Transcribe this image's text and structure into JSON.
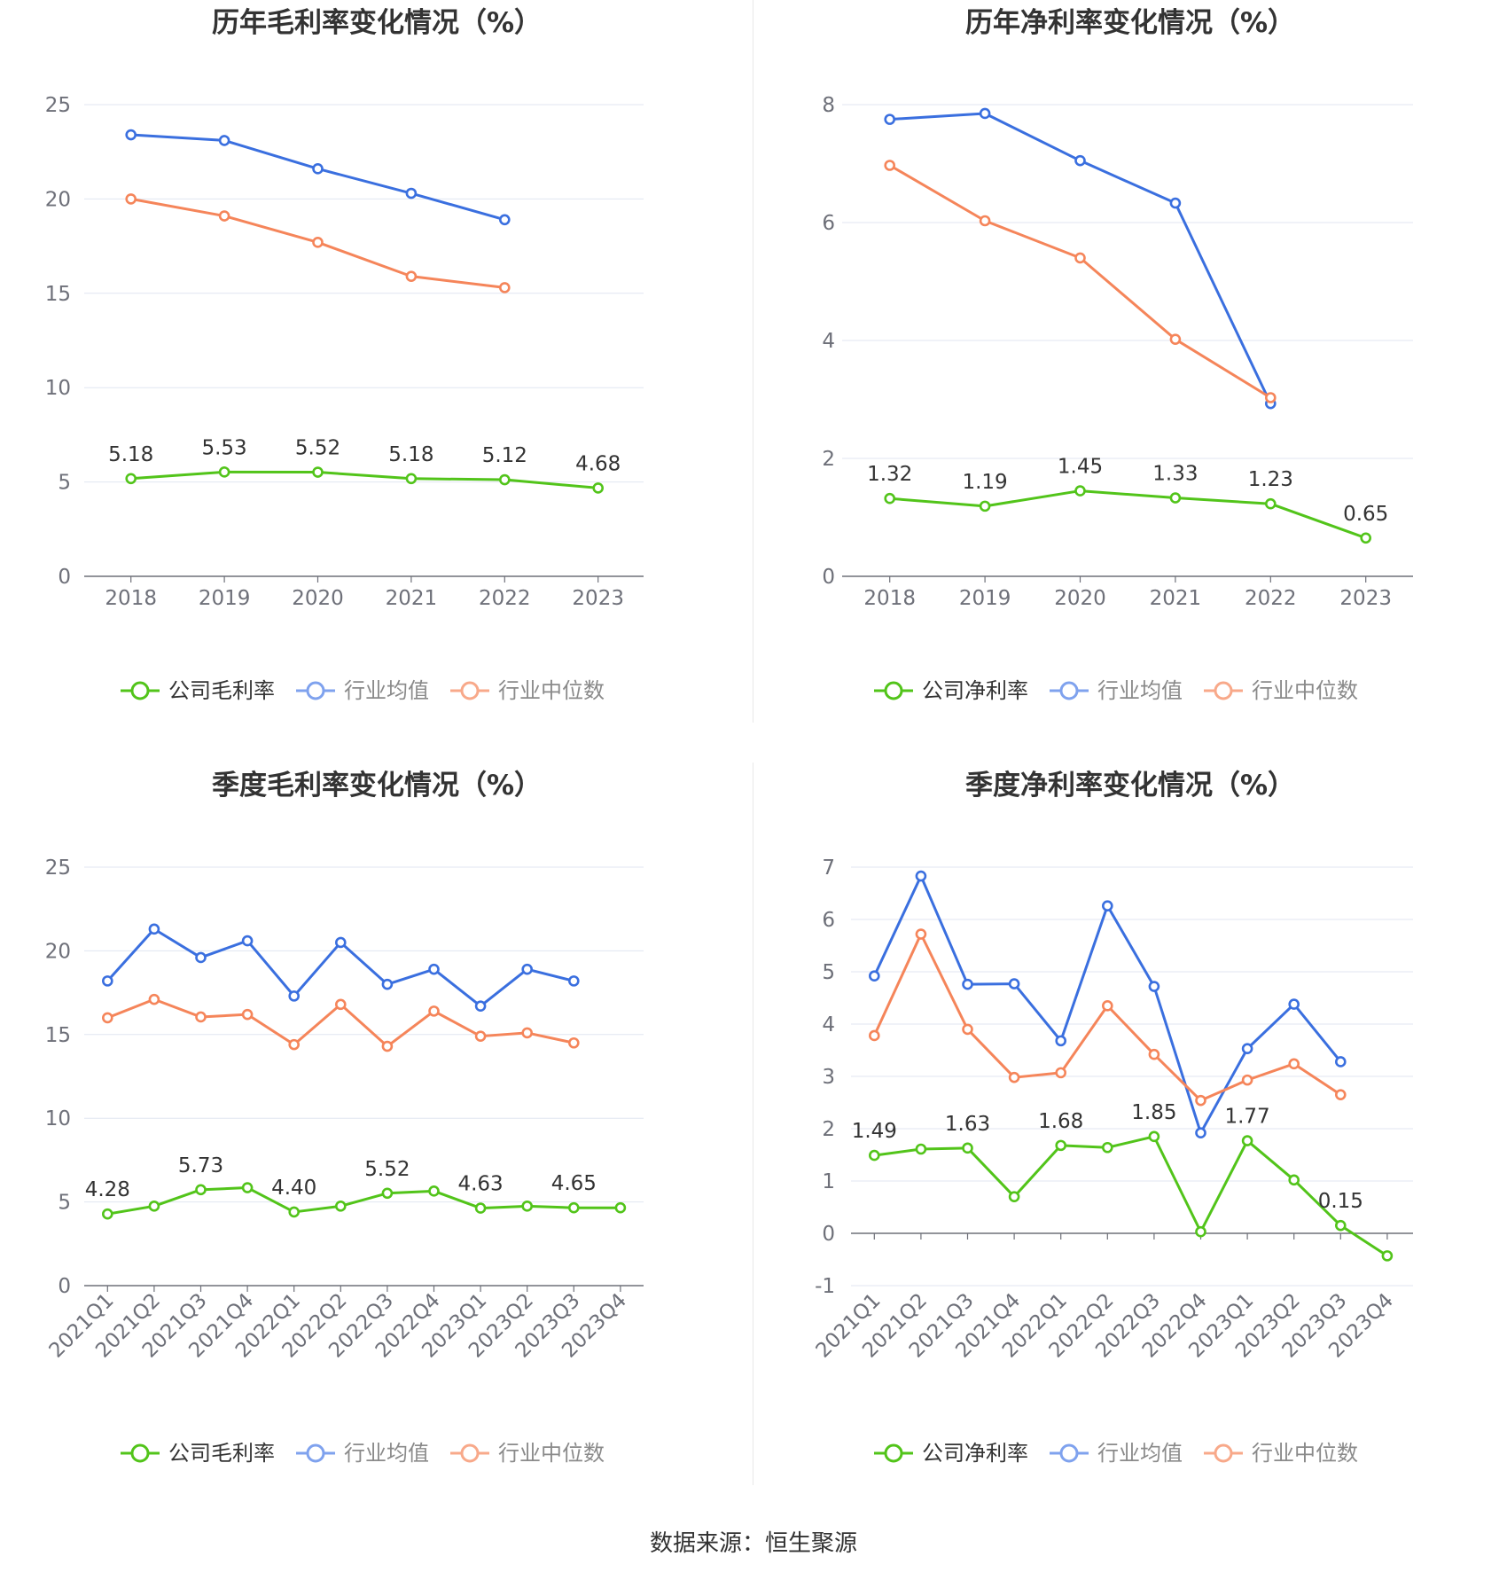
{
  "source": "数据来源：恒生聚源",
  "colors": {
    "company": "#52c41a",
    "avg": "#3a6fdf",
    "median": "#f5855a",
    "grid": "#e0e6f1",
    "axis": "#6e7079"
  },
  "chart_data": [
    {
      "type": "line",
      "title": "历年毛利率变化情况（%）",
      "categories": [
        "2018",
        "2019",
        "2020",
        "2021",
        "2022",
        "2023"
      ],
      "ylim": [
        0,
        25
      ],
      "yticks": [
        0,
        5,
        10,
        15,
        20,
        25
      ],
      "series": [
        {
          "name": "公司毛利率",
          "values": [
            5.18,
            5.53,
            5.52,
            5.18,
            5.12,
            4.68
          ],
          "labels": [
            "5.18",
            "5.53",
            "5.52",
            "5.18",
            "5.12",
            "4.68"
          ]
        },
        {
          "name": "行业均值",
          "values": [
            23.4,
            23.1,
            21.6,
            20.3,
            18.9,
            null
          ]
        },
        {
          "name": "行业中位数",
          "values": [
            20.0,
            19.1,
            17.7,
            15.9,
            15.3,
            null
          ]
        }
      ],
      "grid": true,
      "legend": "bottom"
    },
    {
      "type": "line",
      "title": "历年净利率变化情况（%）",
      "categories": [
        "2018",
        "2019",
        "2020",
        "2021",
        "2022",
        "2023"
      ],
      "ylim": [
        0,
        8
      ],
      "yticks": [
        0,
        2,
        4,
        6,
        8
      ],
      "series": [
        {
          "name": "公司净利率",
          "values": [
            1.32,
            1.19,
            1.45,
            1.33,
            1.23,
            0.65
          ],
          "labels": [
            "1.32",
            "1.19",
            "1.45",
            "1.33",
            "1.23",
            "0.65"
          ]
        },
        {
          "name": "行业均值",
          "values": [
            7.75,
            7.85,
            7.05,
            6.33,
            2.93,
            null
          ]
        },
        {
          "name": "行业中位数",
          "values": [
            6.97,
            6.03,
            5.4,
            4.02,
            3.03,
            null
          ]
        }
      ],
      "grid": true,
      "legend": "bottom"
    },
    {
      "type": "line",
      "title": "季度毛利率变化情况（%）",
      "categories": [
        "2021Q1",
        "2021Q2",
        "2021Q3",
        "2021Q4",
        "2022Q1",
        "2022Q2",
        "2022Q3",
        "2022Q4",
        "2023Q1",
        "2023Q2",
        "2023Q3",
        "2023Q4"
      ],
      "ylim": [
        0,
        25
      ],
      "yticks": [
        0,
        5,
        10,
        15,
        20,
        25
      ],
      "series": [
        {
          "name": "公司毛利率",
          "values": [
            4.28,
            4.75,
            5.73,
            5.85,
            4.4,
            4.75,
            5.52,
            5.65,
            4.63,
            4.75,
            4.65,
            4.65
          ],
          "labels": [
            "4.28",
            "",
            "5.73",
            "",
            "4.40",
            "",
            "5.52",
            "",
            "4.63",
            "",
            "4.65",
            ""
          ]
        },
        {
          "name": "行业均值",
          "values": [
            18.2,
            21.3,
            19.6,
            20.6,
            17.3,
            20.5,
            18.0,
            18.9,
            16.7,
            18.9,
            18.2,
            null
          ]
        },
        {
          "name": "行业中位数",
          "values": [
            16.0,
            17.1,
            16.05,
            16.2,
            14.4,
            16.8,
            14.3,
            16.4,
            14.9,
            15.1,
            14.5,
            null
          ]
        }
      ],
      "grid": true,
      "legend": "bottom"
    },
    {
      "type": "line",
      "title": "季度净利率变化情况（%）",
      "categories": [
        "2021Q1",
        "2021Q2",
        "2021Q3",
        "2021Q4",
        "2022Q1",
        "2022Q2",
        "2022Q3",
        "2022Q4",
        "2023Q1",
        "2023Q2",
        "2023Q3",
        "2023Q4"
      ],
      "ylim": [
        -1,
        7
      ],
      "yticks": [
        -1,
        0,
        1,
        2,
        3,
        4,
        5,
        6,
        7
      ],
      "series": [
        {
          "name": "公司净利率",
          "values": [
            1.49,
            1.61,
            1.63,
            0.7,
            1.68,
            1.64,
            1.85,
            0.03,
            1.77,
            1.02,
            0.15,
            -0.43
          ],
          "labels": [
            "1.49",
            "",
            "1.63",
            "",
            "1.68",
            "",
            "1.85",
            "",
            "1.77",
            "",
            "0.15",
            ""
          ]
        },
        {
          "name": "行业均值",
          "values": [
            4.92,
            6.83,
            4.76,
            4.77,
            3.68,
            6.26,
            4.72,
            1.92,
            3.53,
            4.38,
            3.28,
            null
          ]
        },
        {
          "name": "行业中位数",
          "values": [
            3.78,
            5.72,
            3.9,
            2.98,
            3.07,
            4.35,
            3.42,
            2.54,
            2.93,
            3.24,
            2.65,
            null
          ]
        }
      ],
      "grid": true,
      "legend": "bottom"
    }
  ]
}
